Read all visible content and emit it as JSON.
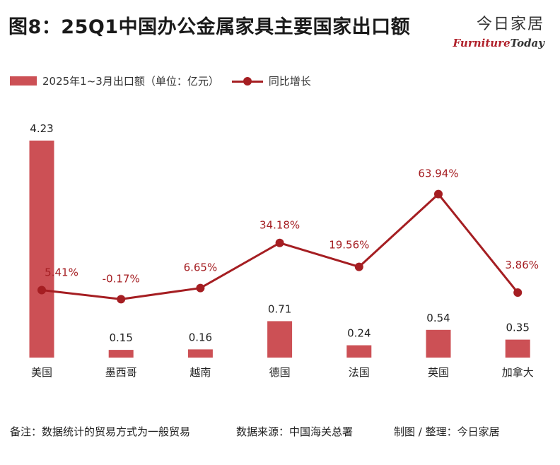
{
  "title": "图8：25Q1中国办公金属家具主要国家出口额",
  "brand": {
    "cn": "今日家居",
    "en_part1": "Furniture",
    "en_part2": "Today"
  },
  "chart_data": {
    "type": "bar",
    "title": "图8：25Q1中国办公金属家具主要国家出口额",
    "categories": [
      "美国",
      "墨西哥",
      "越南",
      "德国",
      "法国",
      "英国",
      "加拿大"
    ],
    "series": [
      {
        "name": "2025年1~3月出口额（单位：亿元）",
        "type": "bar",
        "values": [
          4.23,
          0.15,
          0.16,
          0.71,
          0.24,
          0.54,
          0.35
        ],
        "labels": [
          "4.23",
          "0.15",
          "0.16",
          "0.71",
          "0.24",
          "0.54",
          "0.35"
        ],
        "color": "#cc5055"
      },
      {
        "name": "同比增长",
        "type": "line",
        "values": [
          5.41,
          -0.17,
          6.65,
          34.18,
          19.56,
          63.94,
          3.86
        ],
        "labels": [
          "5.41%",
          "-0.17%",
          "6.65%",
          "34.18%",
          "19.56%",
          "63.94%",
          "3.86%"
        ],
        "color": "#a51e22"
      }
    ],
    "legend": "top-left",
    "grid": false
  },
  "footer": {
    "note": "备注：数据统计的贸易方式为一般贸易",
    "source": "数据来源：中国海关总署",
    "producer": "制图 / 整理：今日家居"
  }
}
